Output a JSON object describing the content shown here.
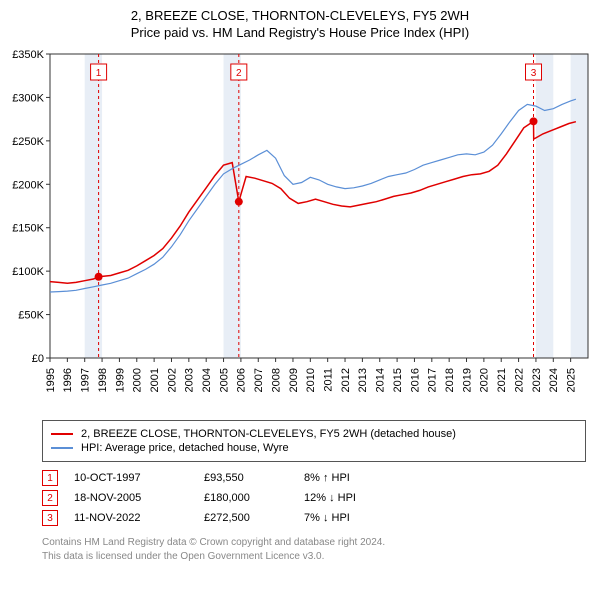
{
  "title": {
    "line1": "2, BREEZE CLOSE, THORNTON-CLEVELEYS, FY5 2WH",
    "line2": "Price paid vs. HM Land Registry's House Price Index (HPI)"
  },
  "chart": {
    "type": "line",
    "background_color": "#ffffff",
    "plot_border_color": "#333333",
    "grid": false,
    "xlim": [
      1995,
      2026
    ],
    "ylim": [
      0,
      350000
    ],
    "y_ticks": [
      0,
      50000,
      100000,
      150000,
      200000,
      250000,
      300000,
      350000
    ],
    "y_tick_labels": [
      "£0",
      "£50K",
      "£100K",
      "£150K",
      "£200K",
      "£250K",
      "£300K",
      "£350K"
    ],
    "x_ticks": [
      1995,
      1996,
      1997,
      1998,
      1999,
      2000,
      2001,
      2002,
      2003,
      2004,
      2005,
      2006,
      2007,
      2008,
      2009,
      2010,
      2011,
      2012,
      2013,
      2014,
      2015,
      2016,
      2017,
      2018,
      2019,
      2020,
      2021,
      2022,
      2023,
      2024,
      2025
    ],
    "band_color": "#e8eef6",
    "band_years": [
      [
        1997,
        1998
      ],
      [
        2005,
        2006
      ],
      [
        2023,
        2024
      ],
      [
        2025,
        2026
      ]
    ],
    "label_fontsize": 11,
    "series": [
      {
        "id": "price_paid",
        "label": "2, BREEZE CLOSE, THORNTON-CLEVELEYS, FY5 2WH (detached house)",
        "color": "#e00000",
        "line_width": 1.5,
        "points": [
          [
            1995.0,
            88000
          ],
          [
            1995.5,
            87000
          ],
          [
            1996.0,
            86000
          ],
          [
            1996.5,
            87000
          ],
          [
            1997.0,
            89000
          ],
          [
            1997.5,
            91000
          ],
          [
            1997.8,
            93550
          ],
          [
            1998.5,
            95000
          ],
          [
            1999.0,
            98000
          ],
          [
            1999.5,
            101000
          ],
          [
            2000.0,
            106000
          ],
          [
            2000.5,
            112000
          ],
          [
            2001.0,
            118000
          ],
          [
            2001.5,
            126000
          ],
          [
            2002.0,
            138000
          ],
          [
            2002.5,
            152000
          ],
          [
            2003.0,
            168000
          ],
          [
            2003.5,
            182000
          ],
          [
            2004.0,
            196000
          ],
          [
            2004.5,
            210000
          ],
          [
            2005.0,
            222000
          ],
          [
            2005.5,
            225000
          ],
          [
            2005.88,
            180000
          ],
          [
            2006.3,
            209000
          ],
          [
            2006.8,
            207000
          ],
          [
            2007.3,
            204000
          ],
          [
            2007.8,
            201000
          ],
          [
            2008.3,
            195000
          ],
          [
            2008.8,
            184000
          ],
          [
            2009.3,
            178000
          ],
          [
            2009.8,
            180000
          ],
          [
            2010.3,
            183000
          ],
          [
            2010.8,
            180000
          ],
          [
            2011.3,
            177000
          ],
          [
            2011.8,
            175000
          ],
          [
            2012.3,
            174000
          ],
          [
            2012.8,
            176000
          ],
          [
            2013.3,
            178000
          ],
          [
            2013.8,
            180000
          ],
          [
            2014.3,
            183000
          ],
          [
            2014.8,
            186000
          ],
          [
            2015.3,
            188000
          ],
          [
            2015.8,
            190000
          ],
          [
            2016.3,
            193000
          ],
          [
            2016.8,
            197000
          ],
          [
            2017.3,
            200000
          ],
          [
            2017.8,
            203000
          ],
          [
            2018.3,
            206000
          ],
          [
            2018.8,
            209000
          ],
          [
            2019.3,
            211000
          ],
          [
            2019.8,
            212000
          ],
          [
            2020.3,
            215000
          ],
          [
            2020.8,
            222000
          ],
          [
            2021.3,
            235000
          ],
          [
            2021.8,
            250000
          ],
          [
            2022.3,
            265000
          ],
          [
            2022.86,
            272500
          ],
          [
            2022.87,
            252000
          ],
          [
            2023.4,
            258000
          ],
          [
            2023.9,
            262000
          ],
          [
            2024.4,
            266000
          ],
          [
            2024.9,
            270000
          ],
          [
            2025.3,
            272000
          ]
        ]
      },
      {
        "id": "hpi",
        "label": "HPI: Average price, detached house, Wyre",
        "color": "#5b8fd6",
        "line_width": 1.2,
        "points": [
          [
            1995.0,
            76000
          ],
          [
            1995.5,
            76500
          ],
          [
            1996.0,
            77000
          ],
          [
            1996.5,
            78000
          ],
          [
            1997.0,
            80000
          ],
          [
            1997.5,
            82000
          ],
          [
            1998.0,
            84000
          ],
          [
            1998.5,
            86000
          ],
          [
            1999.0,
            89000
          ],
          [
            1999.5,
            92000
          ],
          [
            2000.0,
            97000
          ],
          [
            2000.5,
            102000
          ],
          [
            2001.0,
            108000
          ],
          [
            2001.5,
            116000
          ],
          [
            2002.0,
            128000
          ],
          [
            2002.5,
            142000
          ],
          [
            2003.0,
            158000
          ],
          [
            2003.5,
            172000
          ],
          [
            2004.0,
            186000
          ],
          [
            2004.5,
            200000
          ],
          [
            2005.0,
            212000
          ],
          [
            2005.5,
            218000
          ],
          [
            2006.0,
            223000
          ],
          [
            2006.5,
            228000
          ],
          [
            2007.0,
            234000
          ],
          [
            2007.5,
            239000
          ],
          [
            2008.0,
            230000
          ],
          [
            2008.5,
            210000
          ],
          [
            2009.0,
            200000
          ],
          [
            2009.5,
            202000
          ],
          [
            2010.0,
            208000
          ],
          [
            2010.5,
            205000
          ],
          [
            2011.0,
            200000
          ],
          [
            2011.5,
            197000
          ],
          [
            2012.0,
            195000
          ],
          [
            2012.5,
            196000
          ],
          [
            2013.0,
            198000
          ],
          [
            2013.5,
            201000
          ],
          [
            2014.0,
            205000
          ],
          [
            2014.5,
            209000
          ],
          [
            2015.0,
            211000
          ],
          [
            2015.5,
            213000
          ],
          [
            2016.0,
            217000
          ],
          [
            2016.5,
            222000
          ],
          [
            2017.0,
            225000
          ],
          [
            2017.5,
            228000
          ],
          [
            2018.0,
            231000
          ],
          [
            2018.5,
            234000
          ],
          [
            2019.0,
            235000
          ],
          [
            2019.5,
            234000
          ],
          [
            2020.0,
            237000
          ],
          [
            2020.5,
            245000
          ],
          [
            2021.0,
            258000
          ],
          [
            2021.5,
            272000
          ],
          [
            2022.0,
            285000
          ],
          [
            2022.5,
            292000
          ],
          [
            2023.0,
            290000
          ],
          [
            2023.5,
            285000
          ],
          [
            2024.0,
            287000
          ],
          [
            2024.5,
            292000
          ],
          [
            2025.0,
            296000
          ],
          [
            2025.3,
            298000
          ]
        ]
      }
    ],
    "markers": [
      {
        "id": "m1",
        "x": 1997.8,
        "y": 93550,
        "color": "#e00000"
      },
      {
        "id": "m2",
        "x": 2005.88,
        "y": 180000,
        "color": "#e00000"
      },
      {
        "id": "m3",
        "x": 2022.86,
        "y": 272500,
        "color": "#e00000"
      }
    ],
    "event_lines": [
      {
        "id": "e1",
        "x": 1997.8,
        "label": "1",
        "color": "#e00000"
      },
      {
        "id": "e2",
        "x": 2005.88,
        "label": "2",
        "color": "#e00000"
      },
      {
        "id": "e3",
        "x": 2022.86,
        "label": "3",
        "color": "#e00000"
      }
    ]
  },
  "legend": {
    "border_color": "#555555",
    "fontsize": 11,
    "items": [
      {
        "color": "#e00000",
        "label": "2, BREEZE CLOSE, THORNTON-CLEVELEYS, FY5 2WH (detached house)"
      },
      {
        "color": "#5b8fd6",
        "label": "HPI: Average price, detached house, Wyre"
      }
    ]
  },
  "events": [
    {
      "badge": "1",
      "date": "10-OCT-1997",
      "price": "£93,550",
      "delta": "8% ↑ HPI"
    },
    {
      "badge": "2",
      "date": "18-NOV-2005",
      "price": "£180,000",
      "delta": "12% ↓ HPI"
    },
    {
      "badge": "3",
      "date": "11-NOV-2022",
      "price": "£272,500",
      "delta": "7% ↓ HPI"
    }
  ],
  "attribution": {
    "line1": "Contains HM Land Registry data © Crown copyright and database right 2024.",
    "line2": "This data is licensed under the Open Government Licence v3.0."
  }
}
